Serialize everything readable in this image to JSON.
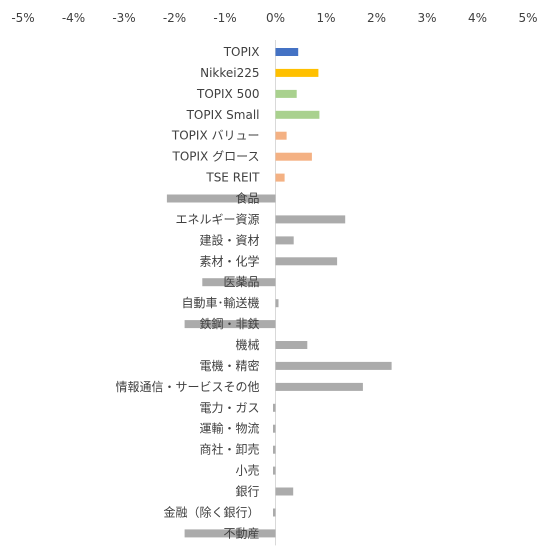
{
  "chart_data": {
    "type": "bar",
    "orientation": "horizontal",
    "xlim": [
      -5,
      5
    ],
    "x_ticks": [
      "-5%",
      "-4%",
      "-3%",
      "-2%",
      "-1%",
      "0%",
      "1%",
      "2%",
      "3%",
      "4%",
      "5%"
    ],
    "x_axis_position": "top",
    "grid": false,
    "legend": "none",
    "categories": [
      "TOPIX",
      "Nikkei225",
      "TOPIX 500",
      "TOPIX Small",
      "TOPIX バリュー",
      "TOPIX グロース",
      "TSE REIT",
      "食品",
      "エネルギー資源",
      "建設・資材",
      "素材・化学",
      "医薬品",
      "自動車･輸送機",
      "鉄鋼・非鉄",
      "機械",
      "電機・精密",
      "情報通信・サービスその他",
      "電力・ガス",
      "運輸・物流",
      "商社・卸売",
      "小売",
      "銀行",
      "金融（除く銀行）",
      "不動産"
    ],
    "values": [
      0.45,
      0.85,
      0.42,
      0.87,
      0.22,
      0.72,
      0.18,
      -2.15,
      1.38,
      0.36,
      1.22,
      -1.45,
      0.06,
      -1.8,
      0.63,
      2.3,
      1.73,
      -0.05,
      -0.05,
      -0.05,
      -0.05,
      0.35,
      -0.05,
      -1.8
    ],
    "colors": [
      "#4472C4",
      "#FFC000",
      "#A9D18E",
      "#A9D18E",
      "#F4B183",
      "#F4B183",
      "#F4B183",
      "#ABABAB",
      "#ABABAB",
      "#ABABAB",
      "#ABABAB",
      "#ABABAB",
      "#ABABAB",
      "#ABABAB",
      "#ABABAB",
      "#ABABAB",
      "#ABABAB",
      "#ABABAB",
      "#ABABAB",
      "#ABABAB",
      "#ABABAB",
      "#ABABAB",
      "#ABABAB",
      "#ABABAB"
    ]
  }
}
